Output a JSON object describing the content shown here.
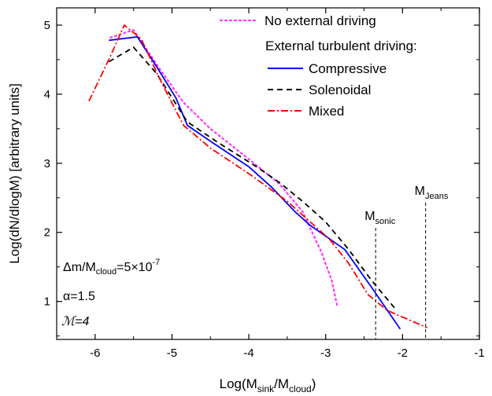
{
  "chart_data": {
    "type": "line",
    "xlabel": {
      "base": "Log(M",
      "sub1": "sink",
      "mid": "/M",
      "sub2": "cloud",
      "end": ")"
    },
    "ylabel": "Log(dN/dlogM) [arbitrary units]",
    "xlim": [
      -6.5,
      -1
    ],
    "ylim": [
      0.45,
      5.25
    ],
    "xticks": [
      -6,
      -5,
      -4,
      -3,
      -2,
      -1
    ],
    "xtick_labels": [
      "-6",
      "-5",
      "-4",
      "-3",
      "-2",
      "-1"
    ],
    "yticks": [
      1,
      2,
      3,
      4,
      5
    ],
    "ytick_labels": [
      "1",
      "2",
      "3",
      "4",
      "5"
    ],
    "legend": {
      "placement": "top-right",
      "header": "External turbulent driving:"
    },
    "series": [
      {
        "name": "No external driving",
        "color": "#ff33ff",
        "dash": "dotted",
        "x": [
          -5.8,
          -5.5,
          -5.15,
          -4.85,
          -4.5,
          -4.0,
          -3.6,
          -3.3,
          -3.05,
          -2.92,
          -2.85
        ],
        "y": [
          4.82,
          4.93,
          4.35,
          3.88,
          3.5,
          3.06,
          2.7,
          2.3,
          1.7,
          1.3,
          0.93
        ]
      },
      {
        "name": "Compressive",
        "color": "#0000ff",
        "dash": "solid",
        "x": [
          -5.82,
          -5.45,
          -5.2,
          -4.95,
          -4.8,
          -4.5,
          -4.0,
          -3.7,
          -3.4,
          -3.2,
          -2.75,
          -2.4,
          -2.03
        ],
        "y": [
          4.78,
          4.83,
          4.4,
          3.95,
          3.55,
          3.32,
          2.95,
          2.65,
          2.3,
          2.1,
          1.75,
          1.2,
          0.6
        ]
      },
      {
        "name": "Solenoidal",
        "color": "#000000",
        "dash": "dashed",
        "x": [
          -5.82,
          -5.5,
          -5.2,
          -4.8,
          -4.4,
          -3.9,
          -3.6,
          -3.3,
          -3.0,
          -2.7,
          -2.4,
          -2.1
        ],
        "y": [
          4.47,
          4.68,
          4.3,
          3.6,
          3.3,
          2.95,
          2.72,
          2.45,
          2.15,
          1.75,
          1.3,
          0.9
        ]
      },
      {
        "name": "Mixed",
        "color": "#ff0000",
        "dash": "dashdot",
        "x": [
          -6.08,
          -5.8,
          -5.62,
          -5.4,
          -5.15,
          -4.85,
          -4.5,
          -4.0,
          -3.5,
          -3.2,
          -2.95,
          -2.7,
          -2.45,
          -2.2,
          -1.68
        ],
        "y": [
          3.9,
          4.55,
          5.0,
          4.8,
          4.2,
          3.55,
          3.22,
          2.85,
          2.45,
          2.15,
          1.9,
          1.55,
          1.1,
          0.87,
          0.62
        ]
      }
    ],
    "vlines": [
      {
        "x": -2.35,
        "base": "M",
        "sub": "sonic"
      },
      {
        "x": -1.7,
        "base": "M",
        "sub": "Jeans"
      }
    ],
    "annotations": [
      {
        "base1": "Δm/M",
        "sub": "cloud",
        "mid": "=5×10",
        "sup": "-7"
      },
      {
        "text": "α=1.5"
      },
      {
        "text": "ℳ=4"
      }
    ]
  }
}
